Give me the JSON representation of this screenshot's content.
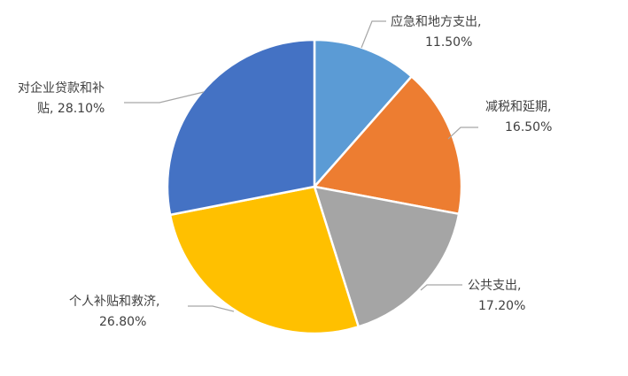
{
  "chart_data": {
    "type": "pie",
    "title": "",
    "start_angle_deg": 0,
    "direction": "clockwise",
    "legend": "none",
    "slices": [
      {
        "label": "应急和地方支出",
        "value": 11.5,
        "value_text": "11.50%",
        "color": "#5b9bd5"
      },
      {
        "label": "减税和延期",
        "value": 16.5,
        "value_text": "16.50%",
        "color": "#ed7d31"
      },
      {
        "label": "公共支出",
        "value": 17.2,
        "value_text": "17.20%",
        "color": "#a5a5a5"
      },
      {
        "label": "个人补贴和救济",
        "value": 26.8,
        "value_text": "26.80%",
        "color": "#ffc000"
      },
      {
        "label": "对企业贷款和补贴",
        "value": 28.1,
        "value_text": "28.10%",
        "color": "#4472c4"
      }
    ]
  }
}
